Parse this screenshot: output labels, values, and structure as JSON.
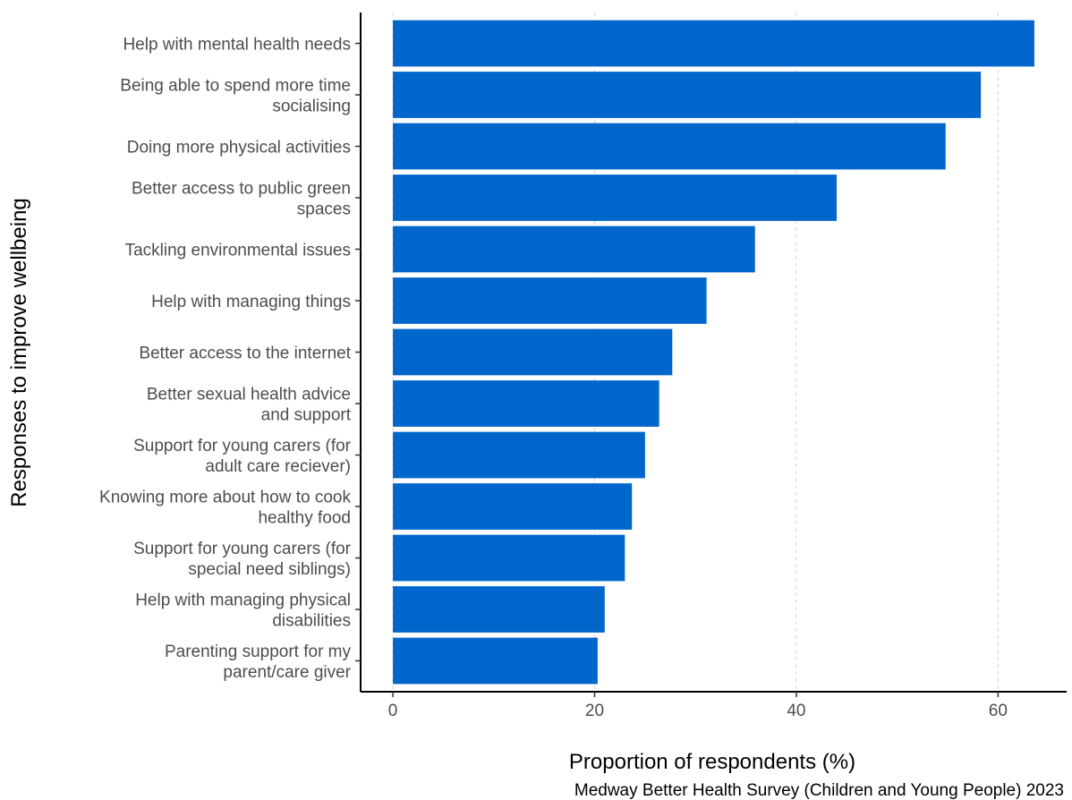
{
  "chart_data": {
    "type": "bar",
    "orientation": "horizontal",
    "categories": [
      "Help with mental health needs",
      "Being able to spend more time socialising",
      "Doing more physical activities",
      "Better access to public green spaces",
      "Tackling environmental issues",
      "Help with managing things",
      "Better access to the internet",
      "Better sexual health advice and support",
      "Support for young carers (for adult care reciever)",
      "Knowing more about how to cook healthy food",
      "Support for young carers (for special need siblings)",
      "Help with managing physical disabilities",
      "Parenting support for my parent/care giver"
    ],
    "category_lines": [
      [
        "Help with mental health needs"
      ],
      [
        "Being able to spend more time",
        "socialising"
      ],
      [
        "Doing more physical activities"
      ],
      [
        "Better access to public green",
        "spaces"
      ],
      [
        "Tackling environmental issues"
      ],
      [
        "Help with managing things"
      ],
      [
        "Better access to the internet"
      ],
      [
        "Better sexual health advice",
        "and support"
      ],
      [
        "Support for young carers (for",
        "adult care reciever)"
      ],
      [
        "Knowing more about how to cook",
        "healthy food"
      ],
      [
        "Support for young carers (for",
        "special need siblings)"
      ],
      [
        "Help with managing physical",
        "disabilities"
      ],
      [
        "Parenting support for my",
        "parent/care giver"
      ]
    ],
    "values": [
      63.6,
      58.3,
      54.8,
      44.0,
      35.9,
      31.1,
      27.7,
      26.4,
      25.0,
      23.7,
      23.0,
      21.0,
      20.3
    ],
    "xlabel": "Proportion of respondents (%)",
    "ylabel": "Responses to improve wellbeing",
    "xlim": [
      -3.2,
      66.8
    ],
    "xticks": [
      0,
      20,
      40,
      60
    ],
    "xtick_labels": [
      "0",
      "20",
      "40",
      "60"
    ],
    "grid": "vertical dashed",
    "legend": "none",
    "caption": "Medway Better Health Survey (Children and Young People) 2023",
    "bar_color": "#0066CC"
  }
}
